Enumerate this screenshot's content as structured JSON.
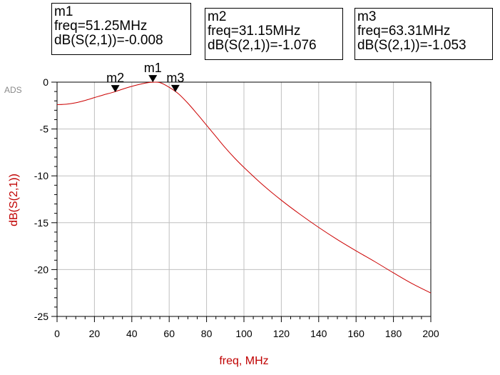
{
  "markers": [
    {
      "name": "m1",
      "freq_text": "freq=51.25MHz",
      "value_text": "dB(S(2,1))=-0.008",
      "freq": 51.25,
      "db": -0.008
    },
    {
      "name": "m2",
      "freq_text": "freq=31.15MHz",
      "value_text": "dB(S(2,1))=-1.076",
      "freq": 31.15,
      "db": -1.076
    },
    {
      "name": "m3",
      "freq_text": "freq=63.31MHz",
      "value_text": "dB(S(2,1))=-1.053",
      "freq": 63.31,
      "db": -1.053
    }
  ],
  "ads_label": "ADS",
  "chart_data": {
    "type": "line",
    "title": "",
    "xlabel": "freq, MHz",
    "ylabel": "dB(S(2,1))",
    "xlim": [
      0,
      200
    ],
    "ylim": [
      -25,
      0
    ],
    "x_ticks": [
      0,
      20,
      40,
      60,
      80,
      100,
      120,
      140,
      160,
      180,
      200
    ],
    "y_ticks": [
      0,
      -5,
      -10,
      -15,
      -20,
      -25
    ],
    "grid": true,
    "colors": {
      "series": "#cc0000",
      "grid": "#c0c0c0",
      "axis_label": "#c00000"
    },
    "series": [
      {
        "x": [
          0,
          5,
          10,
          15,
          20,
          25,
          30,
          35,
          40,
          45,
          50,
          55,
          60,
          65,
          70,
          75,
          80,
          85,
          90,
          95,
          100,
          110,
          120,
          130,
          140,
          150,
          160,
          170,
          180,
          190,
          200
        ],
        "values": [
          -2.4,
          -2.35,
          -2.2,
          -1.95,
          -1.65,
          -1.35,
          -1.08,
          -0.75,
          -0.45,
          -0.2,
          -0.02,
          -0.05,
          -0.55,
          -1.25,
          -2.25,
          -3.4,
          -4.6,
          -5.8,
          -7.0,
          -8.1,
          -9.1,
          -10.95,
          -12.6,
          -14.1,
          -15.5,
          -16.8,
          -18.0,
          -19.15,
          -20.35,
          -21.5,
          -22.5
        ]
      }
    ]
  }
}
